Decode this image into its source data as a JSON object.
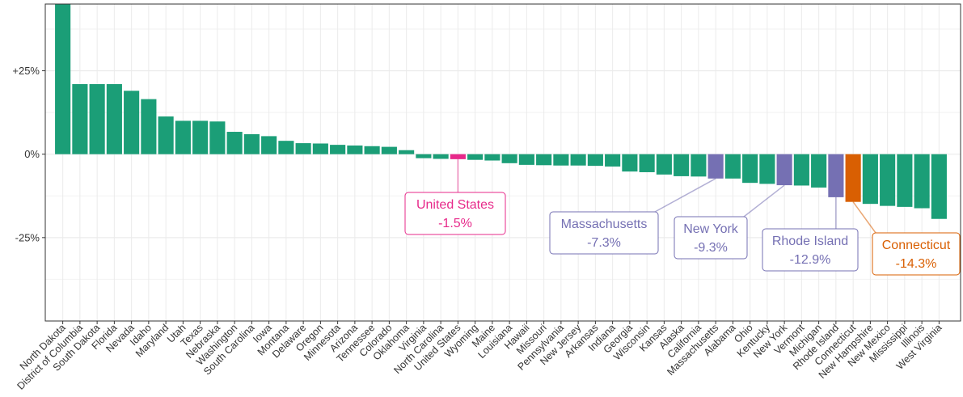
{
  "chart_data": {
    "type": "bar",
    "title": "",
    "xlabel": "",
    "ylabel": "",
    "ylim": [
      -50,
      45
    ],
    "y_ticks": [
      {
        "value": 25,
        "label": "+25%"
      },
      {
        "value": 0,
        "label": "0%"
      },
      {
        "value": -25,
        "label": "-25%"
      }
    ],
    "grid": true,
    "colors": {
      "default": "#1b9e77",
      "united_states": "#e7298a",
      "highlight_purple": "#7570b3",
      "connecticut": "#d95f02"
    },
    "categories": [
      "North Dakota",
      "District of Columbia",
      "South Dakota",
      "Florida",
      "Nevada",
      "Idaho",
      "Maryland",
      "Utah",
      "Texas",
      "Nebraska",
      "Washington",
      "South Carolina",
      "Iowa",
      "Montana",
      "Delaware",
      "Oregon",
      "Minnesota",
      "Arizona",
      "Tennessee",
      "Colorado",
      "Oklahoma",
      "Virginia",
      "North Carolina",
      "United States",
      "Wyoming",
      "Maine",
      "Louisiana",
      "Hawaii",
      "Missouri",
      "Pennsylvania",
      "New Jersey",
      "Arkansas",
      "Indiana",
      "Georgia",
      "Wisconsin",
      "Kansas",
      "Alaska",
      "California",
      "Massachusetts",
      "Alabama",
      "Ohio",
      "Kentucky",
      "New York",
      "Vermont",
      "Michigan",
      "Rhode Island",
      "Connecticut",
      "New Hampshire",
      "New Mexico",
      "Mississippi",
      "Illinois",
      "West Virginia"
    ],
    "values": [
      45.0,
      21.0,
      21.0,
      21.0,
      19.0,
      16.5,
      11.3,
      10.0,
      10.0,
      9.8,
      6.7,
      6.0,
      5.4,
      4.0,
      3.3,
      3.2,
      2.8,
      2.6,
      2.4,
      2.2,
      1.2,
      -1.2,
      -1.4,
      -1.5,
      -1.7,
      -1.9,
      -2.7,
      -3.2,
      -3.3,
      -3.4,
      -3.4,
      -3.5,
      -3.7,
      -5.2,
      -5.4,
      -6.1,
      -6.6,
      -6.7,
      -7.3,
      -7.3,
      -8.6,
      -8.9,
      -9.3,
      -9.4,
      -10.0,
      -12.9,
      -14.3,
      -14.9,
      -15.5,
      -15.8,
      -16.2,
      -19.4
    ],
    "annotations": [
      {
        "target": "United States",
        "line1": "United States",
        "line2": "-1.5%",
        "color": "#e7298a"
      },
      {
        "target": "Massachusetts",
        "line1": "Massachusetts",
        "line2": "-7.3%",
        "color": "#7570b3"
      },
      {
        "target": "New York",
        "line1": "New York",
        "line2": "-9.3%",
        "color": "#7570b3"
      },
      {
        "target": "Rhode Island",
        "line1": "Rhode Island",
        "line2": "-12.9%",
        "color": "#7570b3"
      },
      {
        "target": "Connecticut",
        "line1": "Connecticut",
        "line2": "-14.3%",
        "color": "#d95f02"
      }
    ]
  }
}
